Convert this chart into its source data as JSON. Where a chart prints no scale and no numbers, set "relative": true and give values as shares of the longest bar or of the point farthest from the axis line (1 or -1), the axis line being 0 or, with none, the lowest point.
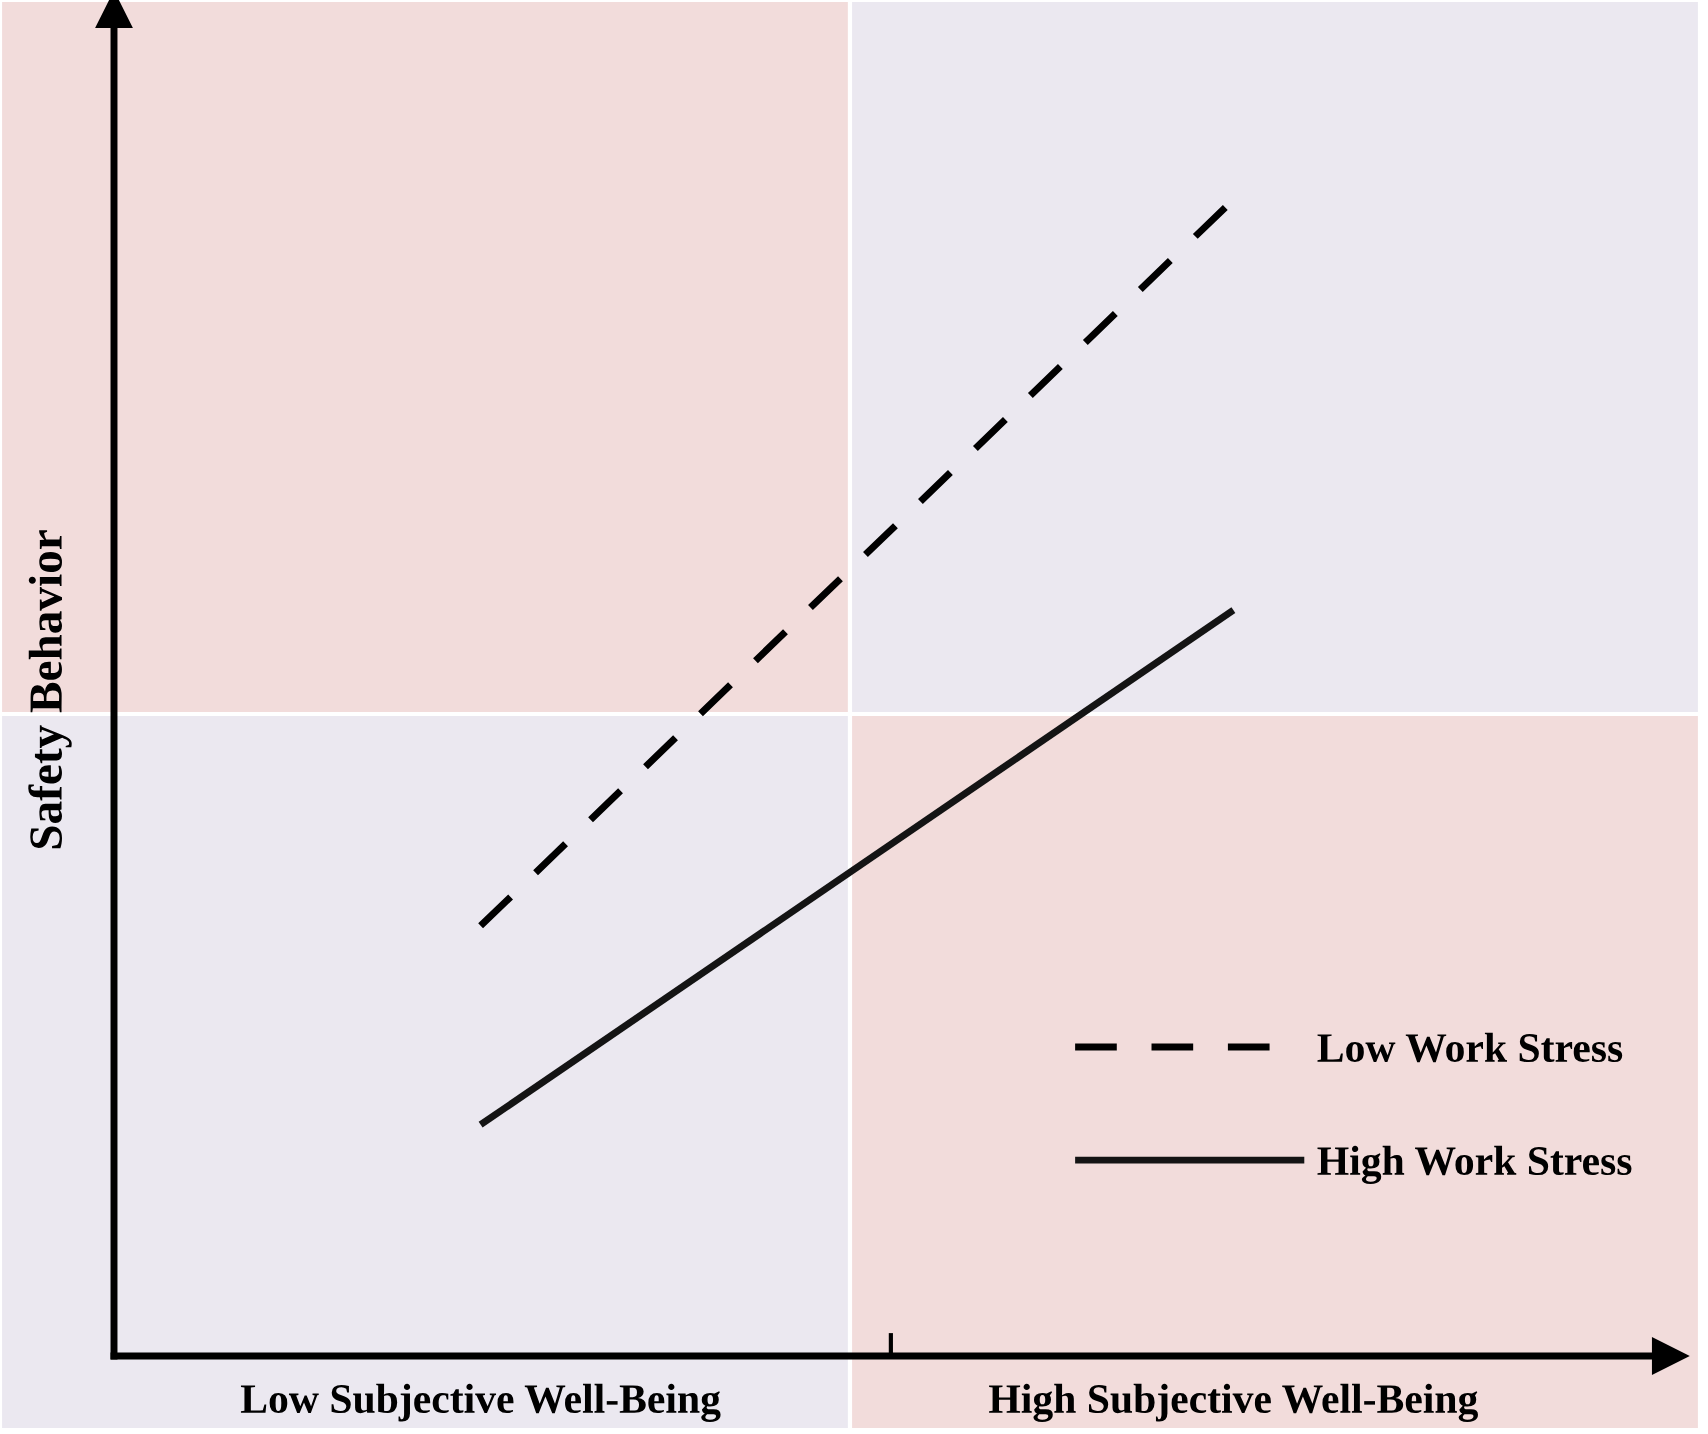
{
  "chart_data": {
    "type": "line",
    "relative": true,
    "ylabel": "Safety Behavior",
    "categories": [
      "Low Subjective Well-Being",
      "High Subjective Well-Being"
    ],
    "series": [
      {
        "name": "Low Work Stress",
        "color": "#000000",
        "line_style": "dashed",
        "values": [
          0.372,
          1.0
        ]
      },
      {
        "name": "High Work Stress",
        "color": "#141414",
        "line_style": "solid",
        "values": [
          0.2,
          0.645
        ]
      }
    ],
    "legend": "bottom right",
    "grid": false,
    "marker": "none"
  }
}
